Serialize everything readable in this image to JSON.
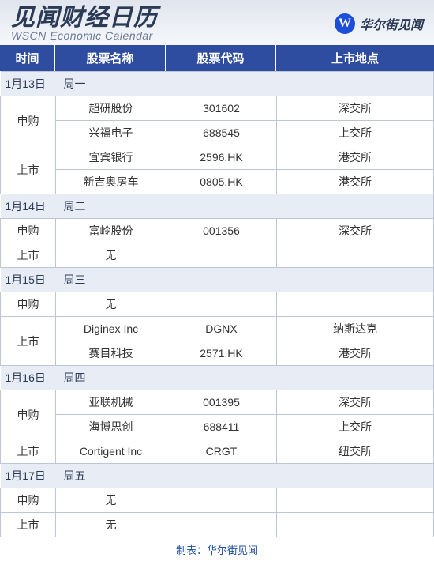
{
  "header": {
    "title_cn": "见闻财经日历",
    "title_en": "WSCN Economic Calendar",
    "brand_logo_letter": "W",
    "brand_name": "华尔街见闻"
  },
  "columns": {
    "time": "时间",
    "name": "股票名称",
    "code": "股票代码",
    "venue": "上市地点"
  },
  "labels": {
    "ipo": "申购",
    "listing": "上市",
    "none": "无"
  },
  "colors": {
    "header_bg": "#2e4da0",
    "header_text": "#ffffff",
    "date_row_bg": "#e8edf5",
    "border": "#bcc6d6",
    "footer_text": "#1e4fa3"
  },
  "days": [
    {
      "date": "1月13日",
      "dow": "周一",
      "groups": [
        {
          "type": "ipo",
          "rows": [
            {
              "name": "超研股份",
              "code": "301602",
              "venue": "深交所"
            },
            {
              "name": "兴福电子",
              "code": "688545",
              "venue": "上交所"
            }
          ]
        },
        {
          "type": "listing",
          "rows": [
            {
              "name": "宜宾银行",
              "code": "2596.HK",
              "venue": "港交所"
            },
            {
              "name": "新吉奥房车",
              "code": "0805.HK",
              "venue": "港交所"
            }
          ]
        }
      ]
    },
    {
      "date": "1月14日",
      "dow": "周二",
      "groups": [
        {
          "type": "ipo",
          "rows": [
            {
              "name": "富岭股份",
              "code": "001356",
              "venue": "深交所"
            }
          ]
        },
        {
          "type": "listing",
          "rows": []
        }
      ]
    },
    {
      "date": "1月15日",
      "dow": "周三",
      "groups": [
        {
          "type": "ipo",
          "rows": []
        },
        {
          "type": "listing",
          "rows": [
            {
              "name": "Diginex Inc",
              "code": "DGNX",
              "venue": "纳斯达克"
            },
            {
              "name": "赛目科技",
              "code": "2571.HK",
              "venue": "港交所"
            }
          ]
        }
      ]
    },
    {
      "date": "1月16日",
      "dow": "周四",
      "groups": [
        {
          "type": "ipo",
          "rows": [
            {
              "name": "亚联机械",
              "code": "001395",
              "venue": "深交所"
            },
            {
              "name": "海博思创",
              "code": "688411",
              "venue": "上交所"
            }
          ]
        },
        {
          "type": "listing",
          "rows": [
            {
              "name": "Cortigent  Inc",
              "code": "CRGT",
              "venue": "纽交所"
            }
          ]
        }
      ]
    },
    {
      "date": "1月17日",
      "dow": "周五",
      "groups": [
        {
          "type": "ipo",
          "rows": []
        },
        {
          "type": "listing",
          "rows": []
        }
      ]
    }
  ],
  "footer": {
    "credit": "制表：华尔街见闻"
  }
}
